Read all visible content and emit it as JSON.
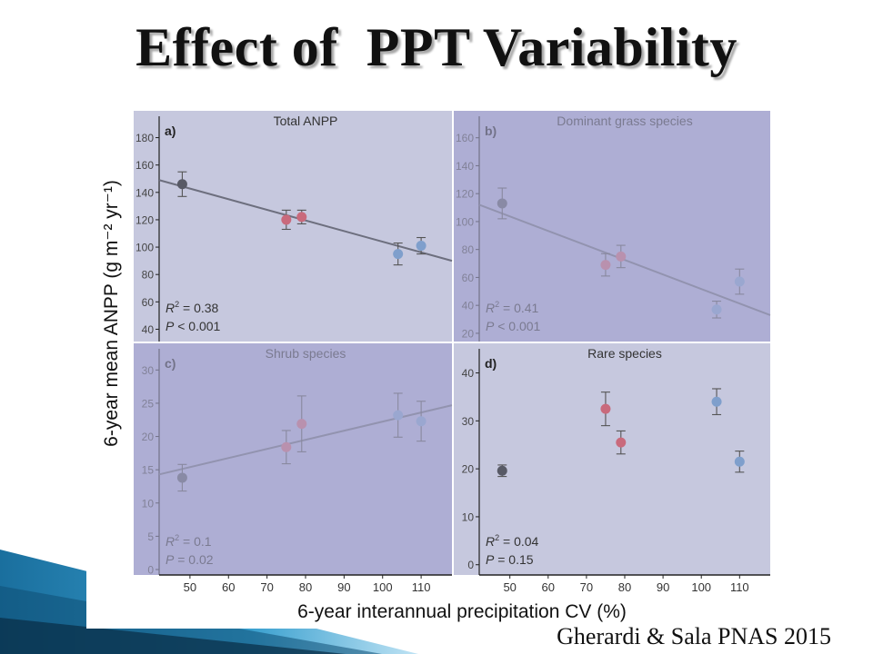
{
  "slide": {
    "title": "Effect of  PPT Variability",
    "citation": "Gherardi & Sala PNAS 2015"
  },
  "colors": {
    "panel_light": "#c6c8de",
    "panel_dark": "#aeaed4",
    "dark_point": "#585a66",
    "pink_point": "#c96a7c",
    "blue_point": "#7f9fcc",
    "regression_line": "#6d6f7e"
  },
  "chart_data": {
    "type": "scatter",
    "xlabel": "6-year interannual precipitation CV (%)",
    "ylabel": "6-year mean ANPP (g  m⁻² yr⁻¹)",
    "xlim": [
      42,
      118
    ],
    "xticks": [
      50,
      60,
      70,
      80,
      90,
      100,
      110
    ],
    "panels": [
      {
        "id": "a",
        "letter": "a)",
        "title": "Total ANPP",
        "ylim": [
          35,
          185
        ],
        "yticks": [
          40,
          60,
          80,
          100,
          120,
          140,
          160,
          180
        ],
        "faded": false,
        "points": [
          {
            "x": 48,
            "y": 146,
            "err": 9,
            "color": "dark"
          },
          {
            "x": 75,
            "y": 120,
            "err": 7,
            "color": "pink"
          },
          {
            "x": 79,
            "y": 122,
            "err": 5,
            "color": "pink"
          },
          {
            "x": 104,
            "y": 95,
            "err": 8,
            "color": "blue"
          },
          {
            "x": 110,
            "y": 101,
            "err": 6,
            "color": "blue"
          }
        ],
        "fit": [
          [
            42,
            149
          ],
          [
            118,
            90
          ]
        ],
        "r2": "0.38",
        "p_relation": "<",
        "p_value": "0.001"
      },
      {
        "id": "b",
        "letter": "b)",
        "title": "Dominant grass species",
        "ylim": [
          18,
          165
        ],
        "yticks": [
          20,
          40,
          60,
          80,
          100,
          120,
          140,
          160
        ],
        "faded": true,
        "points": [
          {
            "x": 48,
            "y": 113,
            "err": 11,
            "color": "dark"
          },
          {
            "x": 75,
            "y": 69,
            "err": 8,
            "color": "pink"
          },
          {
            "x": 79,
            "y": 75,
            "err": 8,
            "color": "pink"
          },
          {
            "x": 104,
            "y": 37,
            "err": 6,
            "color": "blue"
          },
          {
            "x": 110,
            "y": 57,
            "err": 9,
            "color": "blue"
          }
        ],
        "fit": [
          [
            42,
            112
          ],
          [
            118,
            33
          ]
        ],
        "r2": "0.41",
        "p_relation": "<",
        "p_value": "0.001"
      },
      {
        "id": "c",
        "letter": "c)",
        "title": "Shrub species",
        "ylim": [
          0,
          31
        ],
        "yticks": [
          0,
          5,
          10,
          15,
          20,
          25,
          30
        ],
        "faded": true,
        "points": [
          {
            "x": 48,
            "y": 13.8,
            "err": 2,
            "color": "dark"
          },
          {
            "x": 75,
            "y": 18.4,
            "err": 2.5,
            "color": "pink"
          },
          {
            "x": 79,
            "y": 21.9,
            "err": 4.2,
            "color": "pink"
          },
          {
            "x": 104,
            "y": 23.2,
            "err": 3.3,
            "color": "blue"
          },
          {
            "x": 110,
            "y": 22.3,
            "err": 3,
            "color": "blue"
          }
        ],
        "fit": [
          [
            42,
            14.3
          ],
          [
            118,
            24.7
          ]
        ],
        "r2": "0.1",
        "p_relation": "=",
        "p_value": "0.02"
      },
      {
        "id": "d",
        "letter": "d)",
        "title": "Rare species",
        "ylim": [
          -1,
          42
        ],
        "yticks": [
          0,
          10,
          20,
          30,
          40
        ],
        "faded": false,
        "points": [
          {
            "x": 48,
            "y": 19.6,
            "err": 1.2,
            "color": "dark"
          },
          {
            "x": 75,
            "y": 32.5,
            "err": 3.5,
            "color": "pink"
          },
          {
            "x": 79,
            "y": 25.5,
            "err": 2.4,
            "color": "pink"
          },
          {
            "x": 104,
            "y": 34,
            "err": 2.7,
            "color": "blue"
          },
          {
            "x": 110,
            "y": 21.5,
            "err": 2.2,
            "color": "blue"
          }
        ],
        "fit": null,
        "r2": "0.04",
        "p_relation": "=",
        "p_value": "0.15"
      }
    ]
  }
}
